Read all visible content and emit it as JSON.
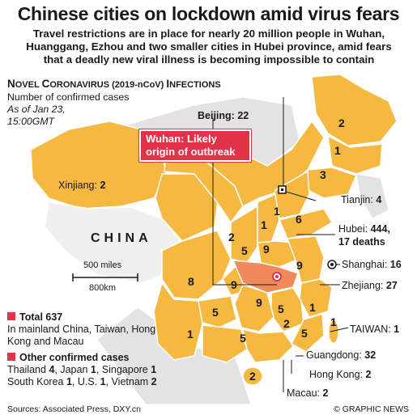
{
  "headline": "Chinese cities on lockdown amid virus fears",
  "subhead": "Travel restrictions are in place for nearly 20 million people in Wuhan, Huanggang, Ezhou and two smaller cities in Hubei province, amid fears that a deadly new viral illness is becoming impossible to contain",
  "panel": {
    "title_main": "N",
    "title_a": "OVEL ",
    "title_b": "C",
    "title_c": "ORONAVIRUS (2019-nCoV) ",
    "title_d": "I",
    "title_e": "NFECTIONS",
    "subtitle": "Number of confirmed cases",
    "as_of": "As of Jan 23, 15:00GMT"
  },
  "callout": {
    "line1": "Wuhan: Likely",
    "line2": "origin of outbreak"
  },
  "country_label": "CHINA",
  "scale": {
    "miles": "500 miles",
    "km": "800km"
  },
  "labels": {
    "beijing": {
      "name": "Beijing: ",
      "value": "22"
    },
    "xinjiang": {
      "name": "Xinjiang: ",
      "value": "2"
    },
    "tianjin": {
      "name": "Tianjin: ",
      "value": "4"
    },
    "hubei": {
      "name": "Hubei: ",
      "value": "444,",
      "line2": "17 deaths"
    },
    "shanghai": {
      "name": "Shanghai: ",
      "value": "16"
    },
    "zhejiang": {
      "name": "Zhejiang: ",
      "value": "27"
    },
    "taiwan": {
      "name": "TAIWAN: ",
      "value": "1"
    },
    "guangdong": {
      "name": "Guangdong: ",
      "value": "32"
    },
    "hongkong": {
      "name": "Hong Kong: ",
      "value": "2"
    },
    "macau": {
      "name": "Macau: ",
      "value": "2"
    }
  },
  "province_numbers": [
    "2",
    "1",
    "3",
    "1",
    "1",
    "6",
    "2",
    "5",
    "9",
    "8",
    "9",
    "9",
    "9",
    "5",
    "1",
    "5",
    "5",
    "2",
    "5",
    "1",
    "1",
    "2"
  ],
  "totals": {
    "total_label": "Total 637",
    "total_desc": "In mainland China, Taiwan, Hong Kong and Macau",
    "other_label": "Other confirmed cases",
    "other": [
      {
        "country": "Thailand ",
        "n": "4"
      },
      {
        "country": ", Japan ",
        "n": "1"
      },
      {
        "country": ", Singapore ",
        "n": "1"
      },
      {
        "country": "South Korea ",
        "n": "1"
      },
      {
        "country": ", U.S. ",
        "n": "1"
      },
      {
        "country": ", Vietnam ",
        "n": "2"
      }
    ]
  },
  "footer": {
    "sources": "Sources: Associated Press, DXY.cn",
    "credit": "© GRAPHIC NEWS"
  },
  "colors": {
    "province": "#f5b942",
    "hubei": "#f08a5a",
    "outside": "#e3e3e3",
    "sea": "#ffffff",
    "accent": "#e0334a"
  }
}
